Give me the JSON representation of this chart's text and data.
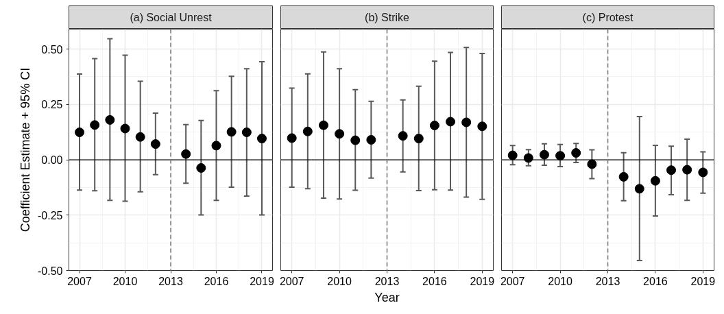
{
  "chart_data": [
    {
      "type": "scatter",
      "title": "(a) Social Unrest",
      "ylabel": "Coefficient Estimate + 95% CI",
      "x": [
        2007,
        2008,
        2009,
        2010,
        2011,
        2012,
        2014,
        2015,
        2016,
        2017,
        2018,
        2019
      ],
      "series": [
        {
          "color": "#000000",
          "values": [
            0.124,
            0.157,
            0.18,
            0.141,
            0.103,
            0.071,
            0.026,
            -0.037,
            0.064,
            0.126,
            0.124,
            0.096
          ],
          "errors": [
            [
              -0.137,
              0.387
            ],
            [
              -0.14,
              0.457
            ],
            [
              -0.183,
              0.547
            ],
            [
              -0.187,
              0.472
            ],
            [
              -0.145,
              0.355
            ],
            [
              -0.067,
              0.211
            ],
            [
              -0.106,
              0.159
            ],
            [
              -0.249,
              0.177
            ],
            [
              -0.183,
              0.312
            ],
            [
              -0.124,
              0.377
            ],
            [
              -0.164,
              0.411
            ],
            [
              -0.249,
              0.443
            ]
          ]
        }
      ],
      "xlim": [
        2006.3,
        2019.7
      ],
      "ylim": [
        -0.5,
        0.59
      ],
      "xticks": [
        2007,
        2010,
        2013,
        2016,
        2019
      ],
      "yticks": [
        {
          "value": -0.5,
          "label": "-0.50"
        },
        {
          "value": -0.25,
          "label": "-0.25"
        },
        {
          "value": 0,
          "label": "0.00"
        },
        {
          "value": 0.25,
          "label": "0.25"
        },
        {
          "value": 0.5,
          "label": "0.50"
        }
      ],
      "ref_lines": [
        {
          "axis": "y",
          "value": 0,
          "color": "#000000",
          "line_style": "solid"
        },
        {
          "axis": "x",
          "value": 2013,
          "color": "#7f7f7f",
          "line_style": "dashed"
        }
      ],
      "grid": true,
      "marker": "circle"
    },
    {
      "type": "scatter",
      "title": "(b) Strike",
      "xlabel": "Year",
      "x": [
        2007,
        2008,
        2009,
        2010,
        2011,
        2012,
        2014,
        2015,
        2016,
        2017,
        2018,
        2019
      ],
      "series": [
        {
          "color": "#000000",
          "values": [
            0.098,
            0.128,
            0.156,
            0.117,
            0.088,
            0.09,
            0.108,
            0.096,
            0.155,
            0.172,
            0.169,
            0.151
          ],
          "errors": [
            [
              -0.124,
              0.324
            ],
            [
              -0.131,
              0.388
            ],
            [
              -0.173,
              0.487
            ],
            [
              -0.177,
              0.411
            ],
            [
              -0.138,
              0.317
            ],
            [
              -0.083,
              0.264
            ],
            [
              -0.055,
              0.27
            ],
            [
              -0.139,
              0.332
            ],
            [
              -0.135,
              0.445
            ],
            [
              -0.137,
              0.485
            ],
            [
              -0.169,
              0.507
            ],
            [
              -0.179,
              0.48
            ]
          ]
        }
      ],
      "xlim": [
        2006.3,
        2019.7
      ],
      "ylim": [
        -0.5,
        0.59
      ],
      "xticks": [
        2007,
        2010,
        2013,
        2016,
        2019
      ],
      "yticks": [
        -0.5,
        -0.25,
        0,
        0.25,
        0.5
      ],
      "ref_lines": [
        {
          "axis": "y",
          "value": 0,
          "color": "#000000",
          "line_style": "solid"
        },
        {
          "axis": "x",
          "value": 2013,
          "color": "#7f7f7f",
          "line_style": "dashed"
        }
      ],
      "grid": true,
      "marker": "circle",
      "tick_labels": "x"
    },
    {
      "type": "scatter",
      "title": "(c) Protest",
      "x": [
        2007,
        2008,
        2009,
        2010,
        2011,
        2012,
        2014,
        2015,
        2016,
        2017,
        2018,
        2019
      ],
      "series": [
        {
          "color": "#000000",
          "values": [
            0.02,
            0.008,
            0.023,
            0.018,
            0.031,
            -0.02,
            -0.077,
            -0.131,
            -0.095,
            -0.047,
            -0.045,
            -0.057
          ],
          "errors": [
            [
              -0.022,
              0.064
            ],
            [
              -0.027,
              0.046
            ],
            [
              -0.025,
              0.072
            ],
            [
              -0.031,
              0.069
            ],
            [
              -0.012,
              0.074
            ],
            [
              -0.085,
              0.045
            ],
            [
              -0.185,
              0.032
            ],
            [
              -0.455,
              0.195
            ],
            [
              -0.254,
              0.065
            ],
            [
              -0.158,
              0.061
            ],
            [
              -0.183,
              0.093
            ],
            [
              -0.151,
              0.036
            ]
          ]
        }
      ],
      "xlim": [
        2006.3,
        2019.7
      ],
      "ylim": [
        -0.5,
        0.59
      ],
      "xticks": [
        2007,
        2010,
        2013,
        2016,
        2019
      ],
      "yticks": [
        -0.5,
        -0.25,
        0,
        0.25,
        0.5
      ],
      "ref_lines": [
        {
          "axis": "y",
          "value": 0,
          "color": "#000000",
          "line_style": "solid"
        },
        {
          "axis": "x",
          "value": 2013,
          "color": "#7f7f7f",
          "line_style": "dashed"
        }
      ],
      "grid": true,
      "marker": "circle",
      "tick_labels": "x"
    }
  ]
}
